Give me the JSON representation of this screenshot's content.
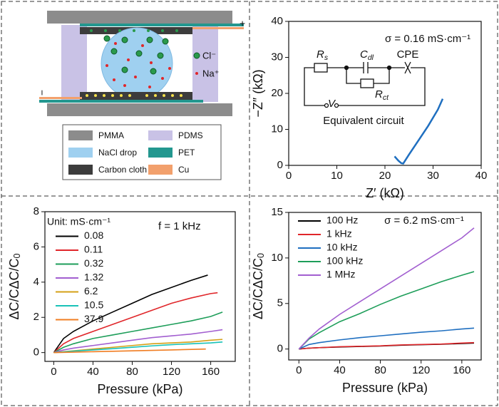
{
  "diagram": {
    "terminals": {
      "plus": "+",
      "minus": "−"
    },
    "ions": {
      "cl": "Cl⁻",
      "na": "Na⁺"
    },
    "materials": [
      "PMMA",
      "PDMS",
      "NaCl drop",
      "PET",
      "Carbon cloth",
      "Cu"
    ]
  },
  "chart_data": [
    {
      "type": "line",
      "x_label": "Z′ (kΩ)",
      "y_label": "−Z″ (kΩ)",
      "annotation": "σ = 0.16 mS·cm⁻¹",
      "circuit": {
        "rs": [
          "R",
          "s"
        ],
        "cdl": [
          "C",
          "dl"
        ],
        "cpe": "CPE",
        "rct": [
          "R",
          "ct"
        ],
        "v": "V",
        "caption": "Equivalent circuit"
      },
      "xlim": [
        0,
        40
      ],
      "ylim": [
        0,
        40
      ],
      "xticks": [
        0,
        10,
        20,
        30,
        40
      ],
      "yticks": [
        0,
        10,
        20,
        30,
        40
      ],
      "series": [
        {
          "color": "#1f6fc0",
          "x": [
            22,
            22.8,
            23.4,
            23.8,
            25,
            27,
            29,
            31,
            32
          ],
          "values": [
            2.5,
            1.3,
            0.6,
            0.5,
            3,
            7,
            11,
            15.5,
            18.5
          ]
        }
      ]
    },
    {
      "type": "line",
      "x_label": "Pressure (kPa)",
      "y_label": "ΔC/C",
      "y_label_sub": "0",
      "annotation": "f = 1 kHz",
      "legend_title": "Unit: mS·cm⁻¹",
      "xlim": [
        -9,
        185
      ],
      "ylim": [
        -0.5,
        8
      ],
      "xticks": [
        0,
        40,
        80,
        120,
        160
      ],
      "yticks": [
        0,
        2,
        4,
        6,
        8
      ],
      "series": [
        {
          "name": "0.08",
          "color": "#000000",
          "x": [
            0,
            10,
            20,
            40,
            60,
            80,
            100,
            120,
            140,
            157
          ],
          "values": [
            0,
            0.8,
            1.2,
            1.8,
            2.3,
            2.8,
            3.3,
            3.7,
            4.1,
            4.4
          ]
        },
        {
          "name": "0.11",
          "color": "#e0262a",
          "x": [
            0,
            10,
            20,
            40,
            60,
            80,
            100,
            120,
            140,
            160,
            167
          ],
          "values": [
            0,
            0.5,
            0.8,
            1.2,
            1.6,
            2.0,
            2.4,
            2.8,
            3.1,
            3.35,
            3.4
          ]
        },
        {
          "name": "0.32",
          "color": "#1e9e5a",
          "x": [
            0,
            10,
            20,
            40,
            60,
            80,
            100,
            120,
            140,
            160,
            172
          ],
          "values": [
            0,
            0.3,
            0.5,
            0.8,
            1.0,
            1.2,
            1.4,
            1.6,
            1.8,
            2.05,
            2.3
          ]
        },
        {
          "name": "1.32",
          "color": "#a25fd0",
          "x": [
            0,
            10,
            20,
            40,
            60,
            80,
            100,
            120,
            140,
            160,
            172
          ],
          "values": [
            0,
            0.15,
            0.25,
            0.4,
            0.55,
            0.7,
            0.85,
            0.95,
            1.05,
            1.2,
            1.3
          ]
        },
        {
          "name": "6.2",
          "color": "#d4a017",
          "x": [
            0,
            20,
            40,
            60,
            80,
            100,
            120,
            140,
            160,
            172
          ],
          "values": [
            0,
            0.1,
            0.2,
            0.3,
            0.4,
            0.5,
            0.55,
            0.6,
            0.7,
            0.75
          ]
        },
        {
          "name": "10.5",
          "color": "#19c2b8",
          "x": [
            0,
            20,
            40,
            60,
            80,
            100,
            120,
            140,
            160,
            172
          ],
          "values": [
            0,
            0.08,
            0.15,
            0.22,
            0.3,
            0.38,
            0.45,
            0.5,
            0.55,
            0.6
          ]
        },
        {
          "name": "37.9",
          "color": "#f07d22",
          "x": [
            0,
            40,
            80,
            120,
            155
          ],
          "values": [
            0,
            0.05,
            0.1,
            0.15,
            0.2
          ]
        }
      ]
    },
    {
      "type": "line",
      "x_label": "Pressure (kPa)",
      "y_label": "ΔC/C",
      "y_label_sub": "0",
      "annotation": "σ = 6.2 mS·cm⁻¹",
      "xlim": [
        -10,
        179
      ],
      "ylim": [
        -1.2,
        15
      ],
      "xticks": [
        0,
        40,
        80,
        120,
        160
      ],
      "yticks": [
        0,
        5,
        10,
        15
      ],
      "series": [
        {
          "name": "100 Hz",
          "color": "#000000",
          "x": [
            0,
            10,
            20,
            40,
            60,
            80,
            100,
            120,
            140,
            160,
            172
          ],
          "values": [
            0,
            0.1,
            0.15,
            0.22,
            0.28,
            0.33,
            0.42,
            0.48,
            0.53,
            0.6,
            0.65
          ]
        },
        {
          "name": "1 kHz",
          "color": "#e0262a",
          "x": [
            0,
            10,
            20,
            40,
            60,
            80,
            100,
            120,
            140,
            160,
            172
          ],
          "values": [
            0,
            0.1,
            0.15,
            0.25,
            0.3,
            0.35,
            0.45,
            0.5,
            0.55,
            0.65,
            0.7
          ]
        },
        {
          "name": "10 kHz",
          "color": "#1f6fc0",
          "x": [
            0,
            10,
            20,
            40,
            60,
            80,
            100,
            120,
            140,
            160,
            172
          ],
          "values": [
            0,
            0.5,
            0.7,
            1.0,
            1.25,
            1.45,
            1.65,
            1.85,
            2.0,
            2.2,
            2.3
          ]
        },
        {
          "name": "100 kHz",
          "color": "#1e9e5a",
          "x": [
            0,
            10,
            20,
            40,
            60,
            80,
            100,
            120,
            140,
            160,
            172
          ],
          "values": [
            0,
            1.1,
            1.8,
            3.0,
            3.9,
            4.9,
            5.8,
            6.6,
            7.4,
            8.1,
            8.5
          ]
        },
        {
          "name": "1 MHz",
          "color": "#a25fd0",
          "x": [
            0,
            10,
            20,
            40,
            60,
            80,
            100,
            120,
            140,
            160,
            172
          ],
          "values": [
            0,
            1.2,
            2.2,
            3.8,
            5.2,
            6.6,
            8.0,
            9.4,
            10.8,
            12.2,
            13.3
          ]
        }
      ]
    }
  ]
}
